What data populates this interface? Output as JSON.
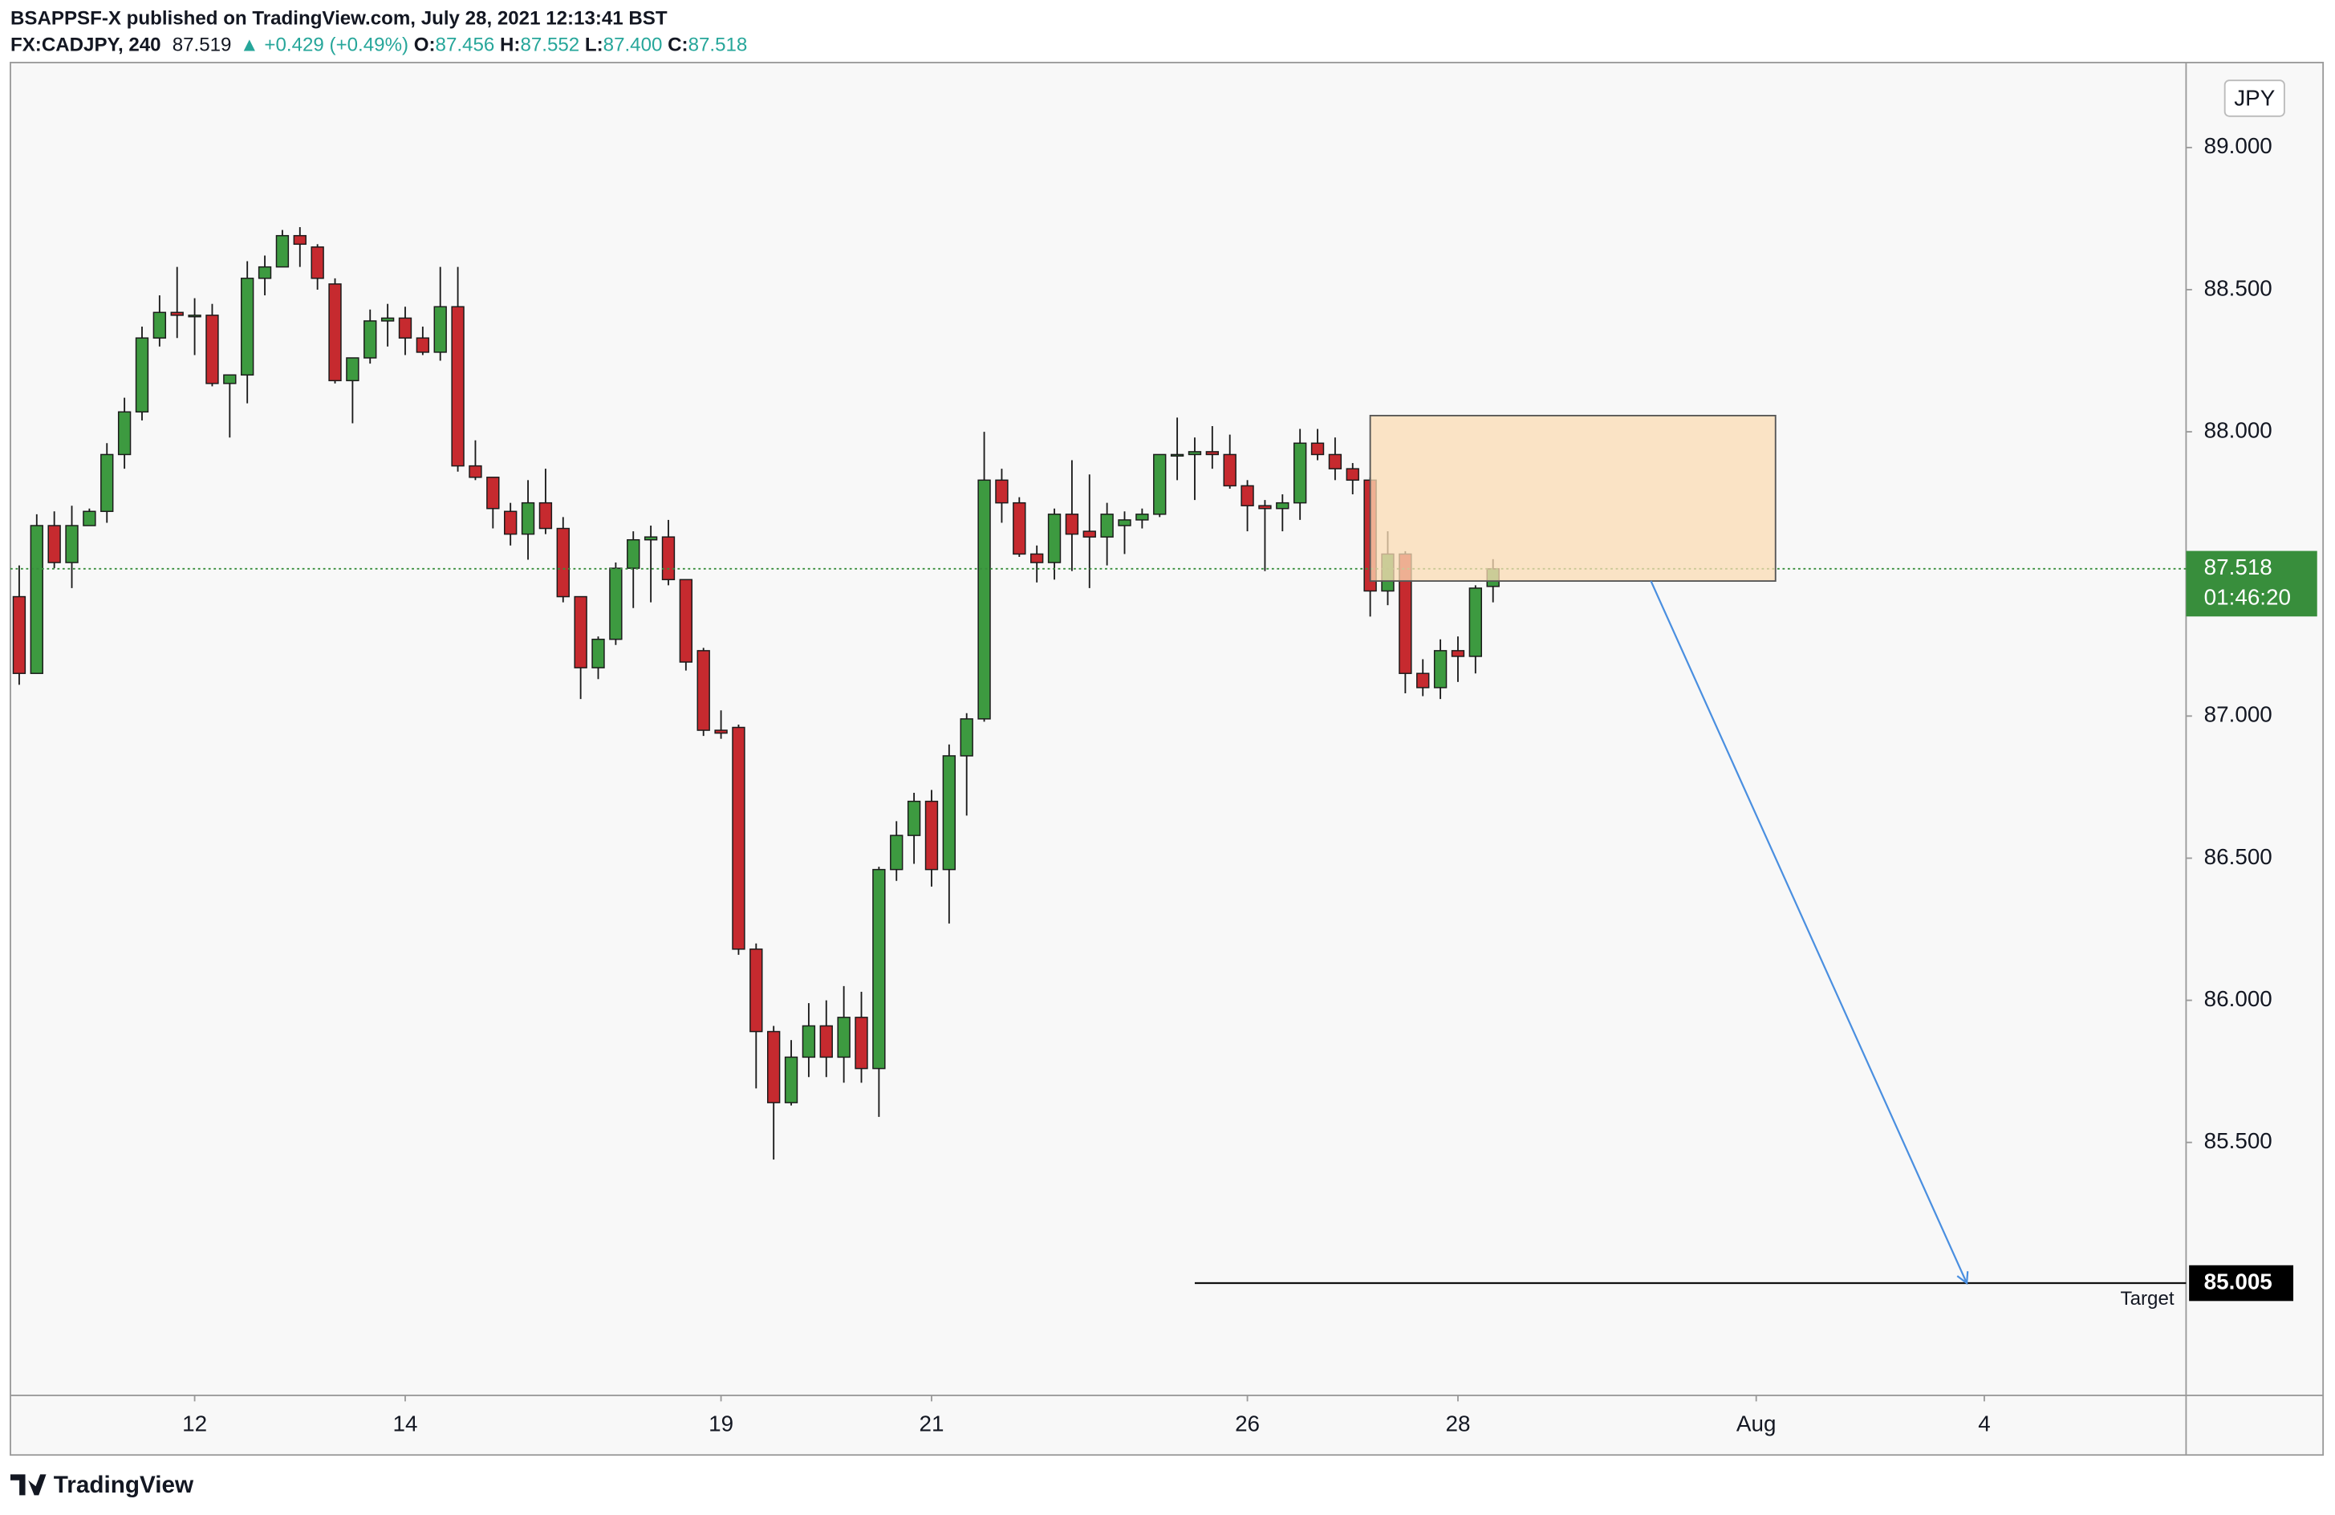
{
  "header": {
    "publisher": "BSAPPSF-X published on TradingView.com, July 28, 2021 12:13:41 BST",
    "symbol": "FX:CADJPY, 240",
    "price": "87.519",
    "change": "▲ +0.429 (+0.49%)",
    "ohlc": [
      {
        "label": "O:",
        "value": "87.456"
      },
      {
        "label": "H:",
        "value": "87.552"
      },
      {
        "label": "L:",
        "value": "87.400"
      },
      {
        "label": "C:",
        "value": "87.518"
      }
    ]
  },
  "logo": "TradingView",
  "chart_data": {
    "type": "candlestick",
    "currency": "JPY",
    "up_color": "#3d9a40",
    "down_color": "#c62a2f",
    "open": [
      87.42,
      87.15,
      87.67,
      87.54,
      87.67,
      87.72,
      87.92,
      88.07,
      88.33,
      88.42,
      88.41,
      88.41,
      88.17,
      88.2,
      88.54,
      88.58,
      88.69,
      88.65,
      88.52,
      88.18,
      88.26,
      88.39,
      88.4,
      88.33,
      88.28,
      88.44,
      87.88,
      87.84,
      87.72,
      87.64,
      87.75,
      87.66,
      87.42,
      87.17,
      87.27,
      87.52,
      87.62,
      87.63,
      87.48,
      87.23,
      86.95,
      86.96,
      86.18,
      85.89,
      85.64,
      85.8,
      85.91,
      85.8,
      85.94,
      85.76,
      86.46,
      86.58,
      86.7,
      86.46,
      86.86,
      86.99,
      87.83,
      87.75,
      87.57,
      87.54,
      87.71,
      87.65,
      87.63,
      87.67,
      87.69,
      87.71,
      87.92,
      87.92,
      87.93,
      87.92,
      87.81,
      87.74,
      87.73,
      87.75,
      87.96,
      87.92,
      87.87,
      87.83,
      87.44,
      87.57,
      87.15,
      87.1,
      87.23,
      87.21,
      87.456
    ],
    "high": [
      87.53,
      87.71,
      87.72,
      87.74,
      87.73,
      87.96,
      88.12,
      88.37,
      88.48,
      88.58,
      88.47,
      88.45,
      88.2,
      88.6,
      88.62,
      88.71,
      88.72,
      88.66,
      88.54,
      88.26,
      88.43,
      88.45,
      88.44,
      88.37,
      88.58,
      88.58,
      87.97,
      87.84,
      87.75,
      87.83,
      87.87,
      87.7,
      87.42,
      87.28,
      87.54,
      87.65,
      87.67,
      87.69,
      87.48,
      87.24,
      87.02,
      86.97,
      86.2,
      85.91,
      85.86,
      85.99,
      86.0,
      86.05,
      86.03,
      86.47,
      86.63,
      86.73,
      86.74,
      86.9,
      87.01,
      88.0,
      87.87,
      87.77,
      87.6,
      87.73,
      87.9,
      87.85,
      87.75,
      87.72,
      87.73,
      87.92,
      88.05,
      87.98,
      88.02,
      87.99,
      87.83,
      87.76,
      87.78,
      88.01,
      88.01,
      87.98,
      87.89,
      87.84,
      87.65,
      87.58,
      87.2,
      87.27,
      87.28,
      87.46,
      87.552
    ],
    "low": [
      87.11,
      87.15,
      87.52,
      87.45,
      87.67,
      87.68,
      87.87,
      88.04,
      88.3,
      88.33,
      88.27,
      88.16,
      87.98,
      88.1,
      88.48,
      88.58,
      88.58,
      88.5,
      88.17,
      88.03,
      88.24,
      88.3,
      88.27,
      88.27,
      88.25,
      87.86,
      87.83,
      87.66,
      87.6,
      87.55,
      87.64,
      87.4,
      87.06,
      87.13,
      87.25,
      87.38,
      87.4,
      87.46,
      87.16,
      86.93,
      86.92,
      86.16,
      85.69,
      85.44,
      85.63,
      85.73,
      85.73,
      85.71,
      85.71,
      85.59,
      86.42,
      86.48,
      86.4,
      86.27,
      86.65,
      86.98,
      87.68,
      87.56,
      87.47,
      87.48,
      87.51,
      87.45,
      87.53,
      87.57,
      87.66,
      87.7,
      87.83,
      87.76,
      87.87,
      87.8,
      87.65,
      87.51,
      87.65,
      87.69,
      87.9,
      87.83,
      87.78,
      87.35,
      87.39,
      87.08,
      87.07,
      87.06,
      87.12,
      87.15,
      87.4
    ],
    "close": [
      87.15,
      87.67,
      87.54,
      87.67,
      87.72,
      87.92,
      88.07,
      88.33,
      88.42,
      88.41,
      88.41,
      88.17,
      88.2,
      88.54,
      88.58,
      88.69,
      88.66,
      88.54,
      88.18,
      88.26,
      88.39,
      88.4,
      88.33,
      88.28,
      88.44,
      87.88,
      87.84,
      87.73,
      87.64,
      87.75,
      87.66,
      87.42,
      87.17,
      87.27,
      87.52,
      87.62,
      87.63,
      87.48,
      87.19,
      86.95,
      86.94,
      86.18,
      85.89,
      85.64,
      85.8,
      85.91,
      85.8,
      85.94,
      85.76,
      86.46,
      86.58,
      86.7,
      86.46,
      86.86,
      86.99,
      87.83,
      87.75,
      87.57,
      87.54,
      87.71,
      87.64,
      87.63,
      87.71,
      87.69,
      87.71,
      87.92,
      87.92,
      87.93,
      87.92,
      87.81,
      87.74,
      87.73,
      87.75,
      87.96,
      87.92,
      87.87,
      87.83,
      87.44,
      87.57,
      87.15,
      87.1,
      87.23,
      87.21,
      87.45,
      87.518
    ],
    "xlim": [
      -0.5,
      123.5
    ],
    "xticks": [
      {
        "value": 10,
        "label": "12"
      },
      {
        "value": 22,
        "label": "14"
      },
      {
        "value": 40,
        "label": "19"
      },
      {
        "value": 52,
        "label": "21"
      },
      {
        "value": 70,
        "label": "26"
      },
      {
        "value": 82,
        "label": "28"
      },
      {
        "value": 99,
        "label": "Aug"
      },
      {
        "value": 112,
        "label": "4"
      }
    ],
    "ylim": [
      84.61,
      89.299
    ],
    "yticks": [
      {
        "value": 85.5,
        "label": "85.500"
      },
      {
        "value": 86,
        "label": "86.000"
      },
      {
        "value": 86.5,
        "label": "86.500"
      },
      {
        "value": 87,
        "label": "87.000"
      },
      {
        "value": 87.5,
        "label": "87.500"
      },
      {
        "value": 88,
        "label": "88.000"
      },
      {
        "value": 88.5,
        "label": "88.500"
      },
      {
        "value": 89,
        "label": "89.000"
      }
    ],
    "last_price": {
      "value": 87.518,
      "countdown": "01:46:20",
      "color": "#388e3c"
    },
    "zone": {
      "x0": 77,
      "x1": 100.1,
      "y0": 87.475,
      "y1": 88.057,
      "color": "#fbdcb4"
    },
    "target": {
      "value": 85.005,
      "x0": 67,
      "text": "Target"
    },
    "arrow": {
      "x0": 93,
      "y0": 87.475,
      "x1": 111,
      "y1": 85.005,
      "color": "#4a8fe0"
    }
  }
}
